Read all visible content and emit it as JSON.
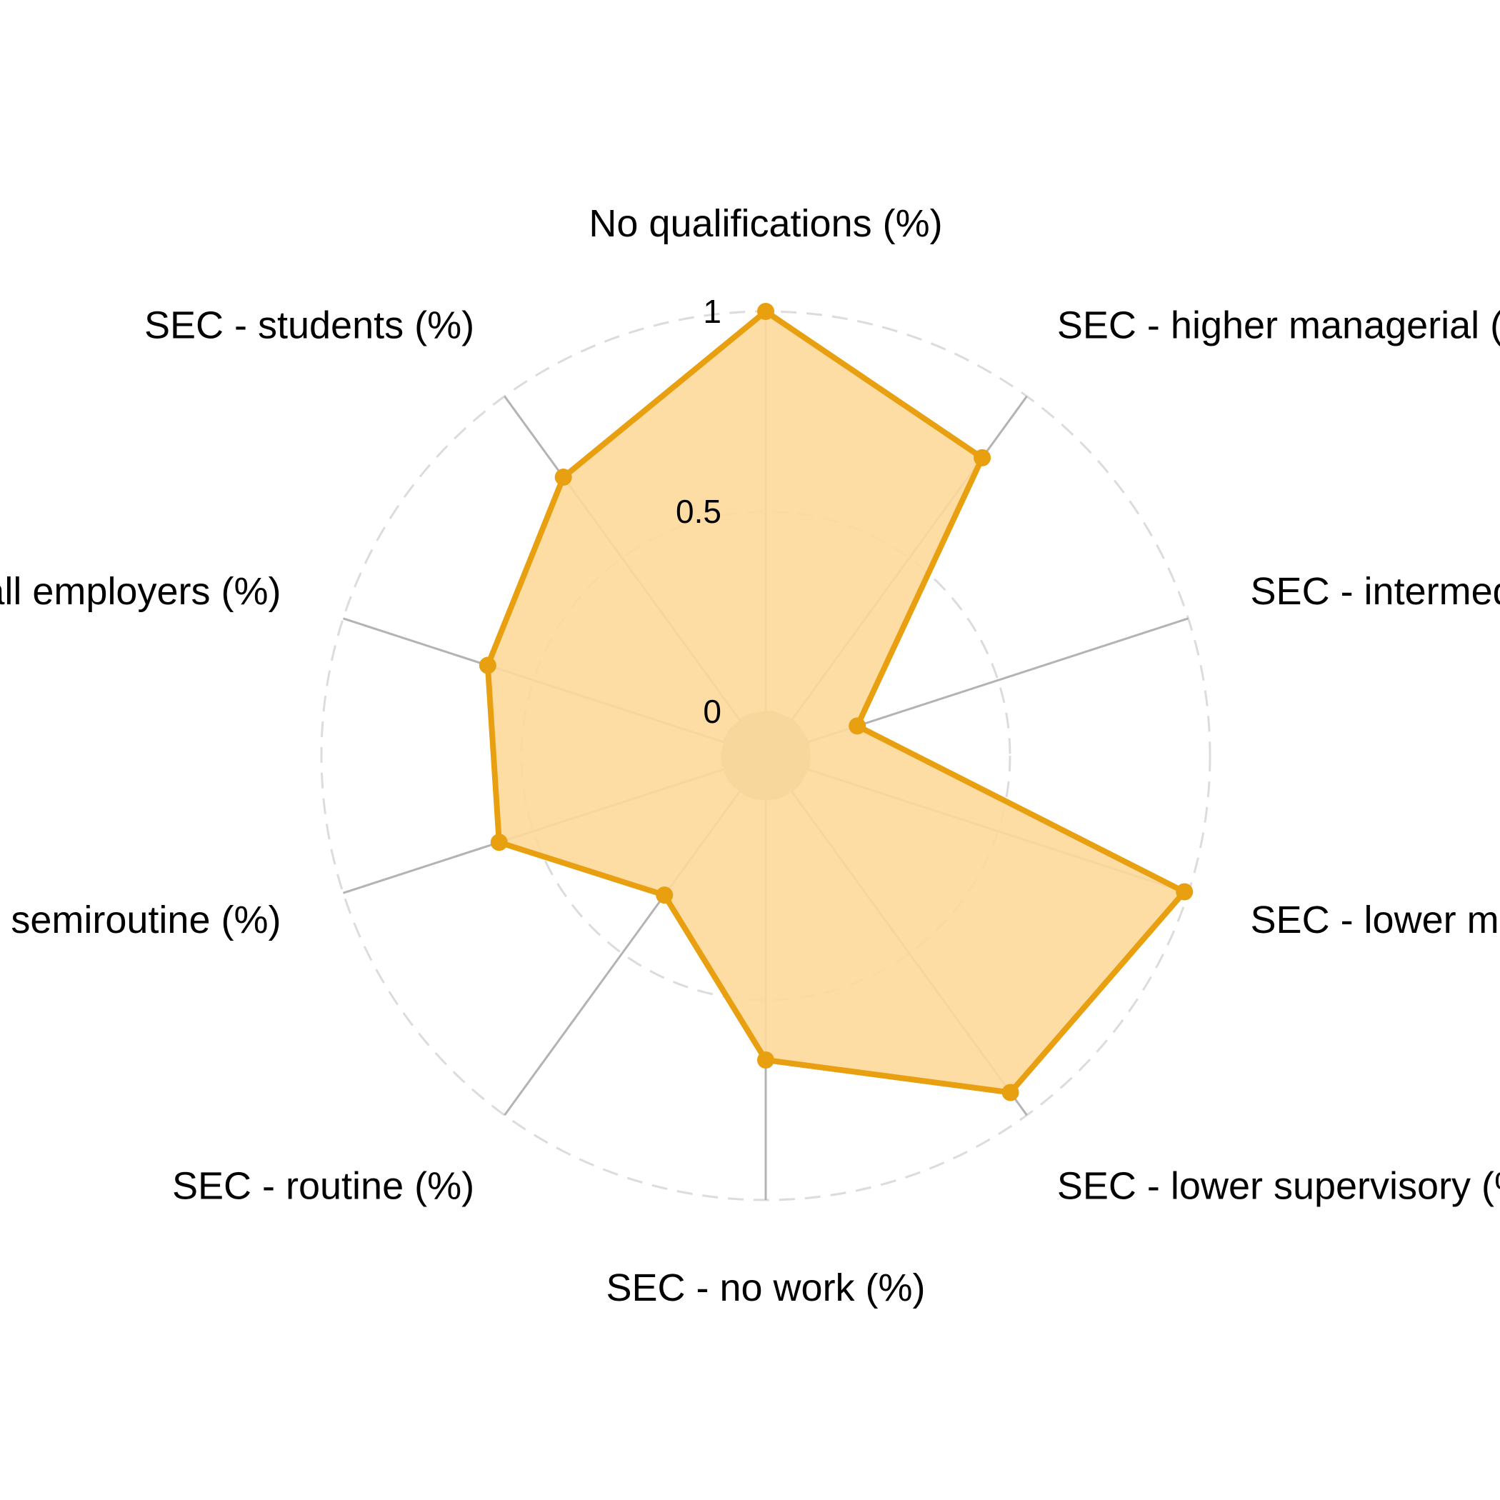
{
  "chart_data": {
    "type": "radar",
    "axes": [
      "No qualifications (%)",
      "SEC - higher managerial (%)",
      "SEC - intermediate (%)",
      "SEC - lower managerial (%)",
      "SEC - lower supervisory (%)",
      "SEC - no work (%)",
      "SEC - routine (%)",
      "SEC - semiroutine (%)",
      "SEC - small employers (%)",
      "SEC - students (%)"
    ],
    "values": [
      1.0,
      0.81,
      0.13,
      0.99,
      0.93,
      0.65,
      0.32,
      0.59,
      0.62,
      0.75
    ],
    "rlim": [
      0,
      1
    ],
    "ticks": [
      {
        "value": 0,
        "label": "0"
      },
      {
        "value": 0.5,
        "label": "0.5"
      },
      {
        "value": 1,
        "label": "1"
      }
    ],
    "grid": true,
    "legend": "none",
    "colors": {
      "line": "#E8A010",
      "fill": "#FDD99A",
      "spoke": "#b3b3b3",
      "grid_circle": "#dcdcdc"
    }
  }
}
